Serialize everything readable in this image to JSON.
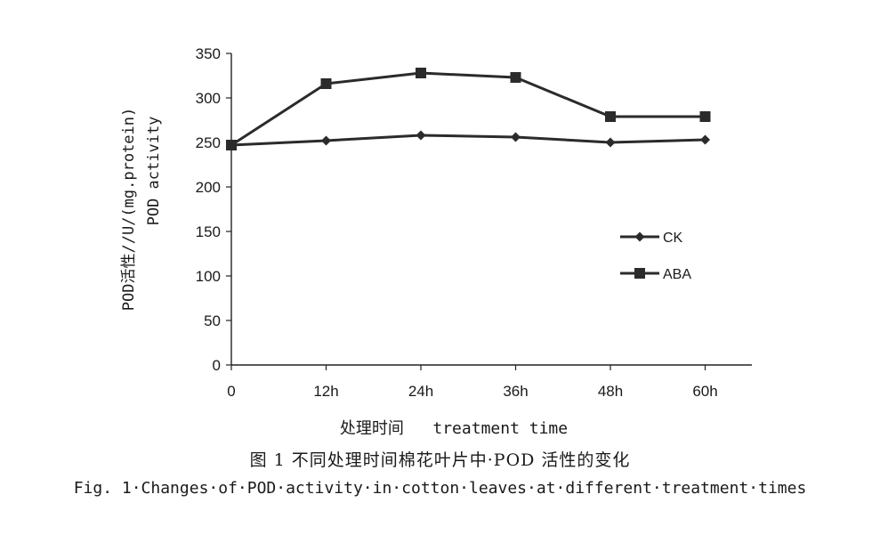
{
  "chart_data": {
    "type": "line",
    "categories": [
      "0",
      "12h",
      "24h",
      "36h",
      "48h",
      "60h"
    ],
    "series": [
      {
        "name": "CK",
        "marker": "diamond",
        "values": [
          247,
          252,
          258,
          256,
          250,
          253
        ]
      },
      {
        "name": "ABA",
        "marker": "square",
        "values": [
          247,
          316,
          328,
          323,
          279,
          279
        ]
      }
    ],
    "ylim": [
      0,
      350
    ],
    "yticks": [
      0,
      50,
      100,
      150,
      200,
      250,
      300,
      350
    ],
    "ylabel_line1": "POD活性//U/(mg.protein)",
    "ylabel_line2": "POD activity",
    "xlabel": "处理时间   treatment time",
    "grid": false,
    "legend_position": "right",
    "line_color": "#2b2b2b"
  },
  "captions": {
    "chinese": "图 1 不同处理时间棉花叶片中·POD 活性的变化",
    "english": "Fig. 1·Changes·of·POD·activity·in·cotton·leaves·at·different·treatment·times"
  }
}
